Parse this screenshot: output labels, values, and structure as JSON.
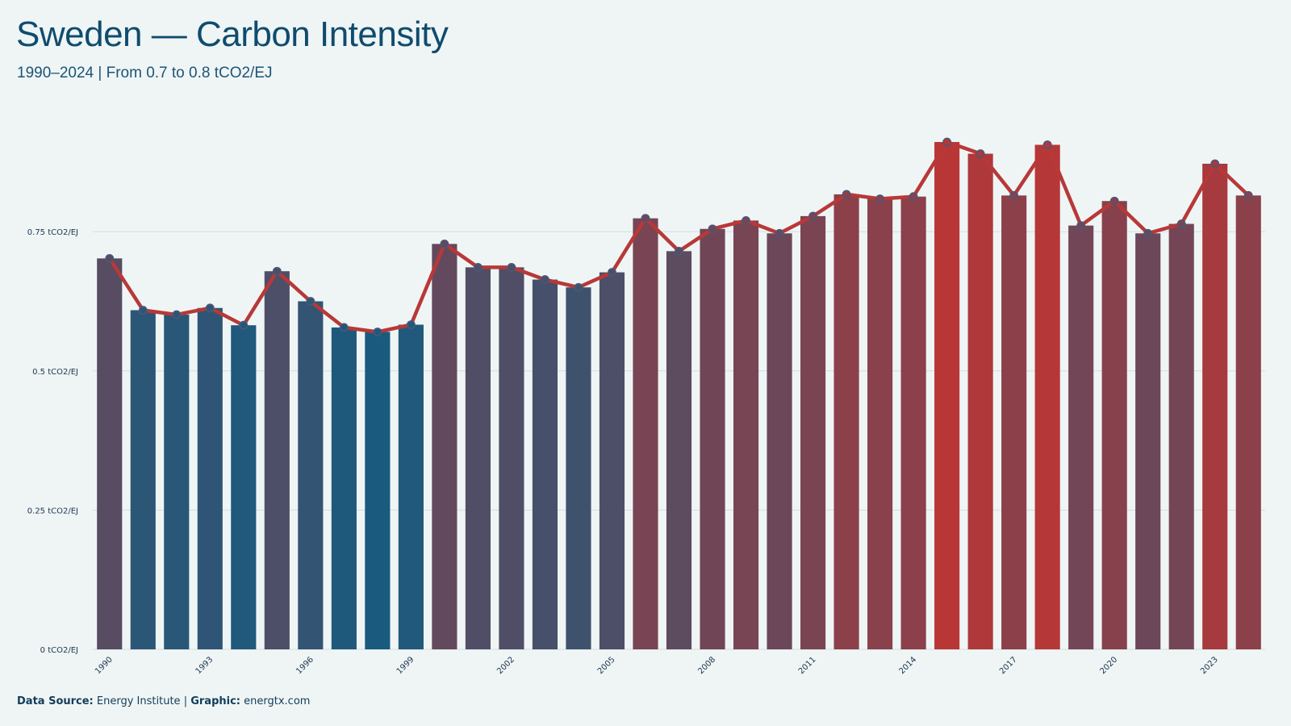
{
  "header": {
    "title": "Sweden — Carbon Intensity",
    "subtitle": "1990–2024 | From 0.7 to 0.8 tCO2/EJ"
  },
  "footer": {
    "source_label": "Data Source:",
    "source_value": "Energy Institute",
    "separator": "|",
    "graphic_label": "Graphic:",
    "graphic_value": "energtx.com"
  },
  "colors": {
    "background": "#eff5f5",
    "low": "#1a5a7e",
    "high": "#b83636",
    "line": "#b83838",
    "marker": "#4a5878",
    "grid": "#d5dde0"
  },
  "chart_data": {
    "type": "bar",
    "title": "Sweden — Carbon Intensity",
    "subtitle": "1990–2024 | From 0.7 to 0.8 tCO2/EJ",
    "unit": "tCO2/EJ",
    "x": [
      1990,
      1991,
      1992,
      1993,
      1994,
      1995,
      1996,
      1997,
      1998,
      1999,
      2000,
      2001,
      2002,
      2003,
      2004,
      2005,
      2006,
      2007,
      2008,
      2009,
      2010,
      2011,
      2012,
      2013,
      2014,
      2015,
      2016,
      2017,
      2018,
      2019,
      2020,
      2021,
      2022,
      2023,
      2024
    ],
    "values": [
      0.702,
      0.609,
      0.601,
      0.613,
      0.582,
      0.679,
      0.625,
      0.578,
      0.57,
      0.583,
      0.728,
      0.686,
      0.686,
      0.664,
      0.65,
      0.677,
      0.774,
      0.715,
      0.755,
      0.77,
      0.747,
      0.778,
      0.817,
      0.809,
      0.813,
      0.911,
      0.89,
      0.815,
      0.906,
      0.761,
      0.805,
      0.747,
      0.764,
      0.872,
      0.815
    ],
    "overlay": "line-with-markers",
    "xtick_labels": [
      "1990",
      "1993",
      "1996",
      "1999",
      "2002",
      "2005",
      "2008",
      "2011",
      "2014",
      "2017",
      "2020",
      "2023"
    ],
    "yticks": [
      {
        "value": 0,
        "label": "0 tCO2/EJ"
      },
      {
        "value": 0.25,
        "label": "0.25 tCO2/EJ"
      },
      {
        "value": 0.5,
        "label": "0.5 tCO2/EJ"
      },
      {
        "value": 0.75,
        "label": "0.75 tCO2/EJ"
      }
    ],
    "ylim": [
      0,
      0.95
    ],
    "grid": true,
    "legend": "none"
  }
}
